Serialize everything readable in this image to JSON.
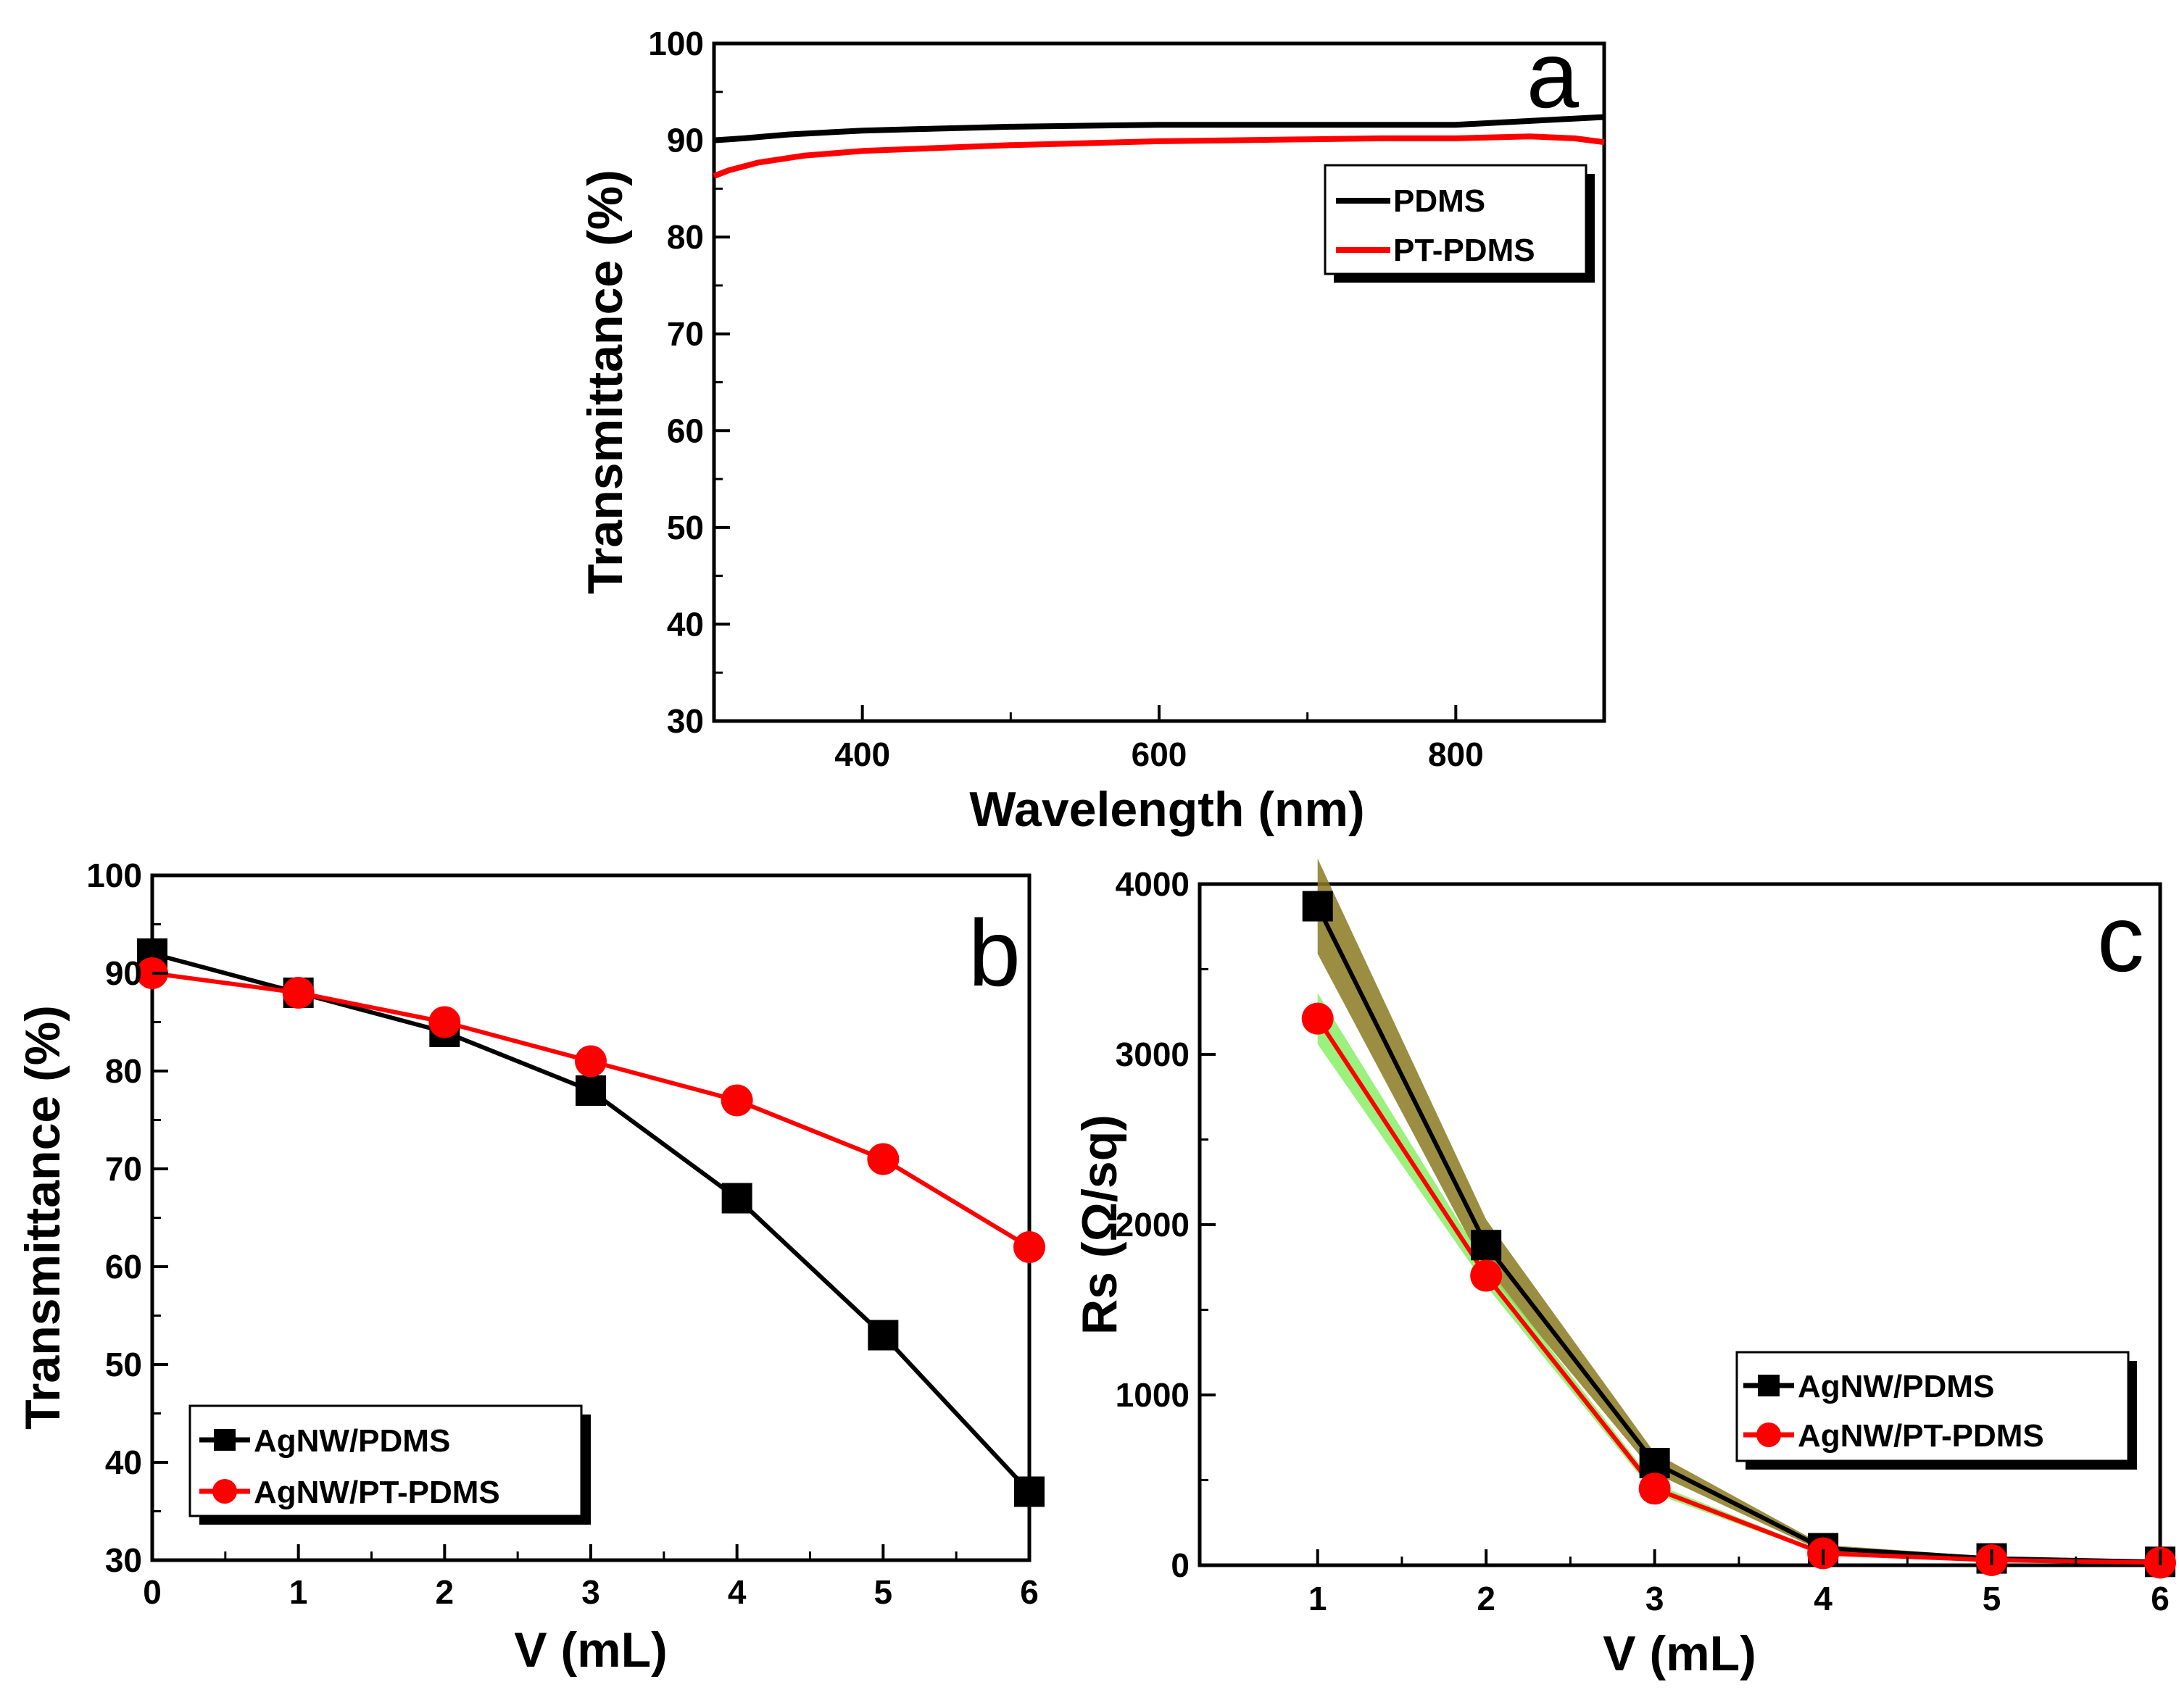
{
  "figure": {
    "panels": [
      "a",
      "b",
      "c"
    ]
  },
  "colors": {
    "black": "#000000",
    "red": "#ff0000",
    "bandC_black": "#8a7a22",
    "bandC_red": "#88ee66"
  },
  "chart_data": [
    {
      "panel": "a",
      "type": "line",
      "xlabel": "Wavelength (nm)",
      "ylabel": "Transmittance (%)",
      "xlim": [
        300,
        900
      ],
      "ylim": [
        30,
        100
      ],
      "xticks": [
        400,
        600,
        800
      ],
      "yticks": [
        30,
        40,
        50,
        60,
        70,
        80,
        90,
        100
      ],
      "legend_position": "top-right",
      "series": [
        {
          "name": "PDMS",
          "color": "#000000",
          "x": [
            300,
            320,
            350,
            400,
            450,
            500,
            550,
            600,
            650,
            700,
            750,
            800,
            850,
            900
          ],
          "y": [
            90.0,
            90.2,
            90.6,
            91.0,
            91.2,
            91.4,
            91.5,
            91.6,
            91.6,
            91.6,
            91.6,
            91.6,
            92.0,
            92.4
          ]
        },
        {
          "name": "PT-PDMS",
          "color": "#ff0000",
          "x": [
            300,
            310,
            330,
            360,
            400,
            450,
            500,
            550,
            600,
            650,
            700,
            750,
            800,
            850,
            880,
            900
          ],
          "y": [
            86.3,
            86.9,
            87.7,
            88.4,
            88.9,
            89.2,
            89.5,
            89.7,
            89.9,
            90.0,
            90.1,
            90.2,
            90.2,
            90.4,
            90.2,
            89.8
          ]
        }
      ]
    },
    {
      "panel": "b",
      "type": "line",
      "xlabel": "V (mL)",
      "ylabel": "Transmittance (%)",
      "xlim": [
        0,
        6
      ],
      "ylim": [
        30,
        100
      ],
      "xticks": [
        0,
        1,
        2,
        3,
        4,
        5,
        6
      ],
      "yticks": [
        30,
        40,
        50,
        60,
        70,
        80,
        90,
        100
      ],
      "legend_position": "bottom-left",
      "series": [
        {
          "name": "AgNW/PDMS",
          "marker": "square",
          "color": "#000000",
          "x": [
            0,
            1,
            2,
            3,
            4,
            5,
            6
          ],
          "y": [
            92,
            88,
            84,
            78,
            67,
            53,
            37
          ]
        },
        {
          "name": "AgNW/PT-PDMS",
          "marker": "circle",
          "color": "#ff0000",
          "x": [
            0,
            1,
            2,
            3,
            4,
            5,
            6
          ],
          "y": [
            90,
            88,
            85,
            81,
            77,
            71,
            62
          ]
        }
      ]
    },
    {
      "panel": "c",
      "type": "line",
      "xlabel": "V (mL)",
      "ylabel": "Rs (Ω/sq)",
      "xlim": [
        0.3,
        6
      ],
      "ylim": [
        0,
        4000
      ],
      "xticks": [
        1,
        2,
        3,
        4,
        5,
        6
      ],
      "yticks": [
        0,
        1000,
        2000,
        3000,
        4000
      ],
      "legend_position": "center-right",
      "series": [
        {
          "name": "AgNW/PDMS",
          "marker": "square",
          "color": "#000000",
          "x": [
            1,
            2,
            3,
            4,
            5,
            6
          ],
          "y": [
            3870,
            1880,
            600,
            100,
            40,
            20
          ],
          "error": [
            280,
            150,
            60,
            20,
            10,
            5
          ]
        },
        {
          "name": "AgNW/PT-PDMS",
          "marker": "circle",
          "color": "#ff0000",
          "x": [
            1,
            2,
            3,
            4,
            5,
            6
          ],
          "y": [
            3210,
            1700,
            450,
            70,
            30,
            15
          ],
          "error": [
            150,
            60,
            30,
            10,
            5,
            5
          ]
        }
      ]
    }
  ]
}
